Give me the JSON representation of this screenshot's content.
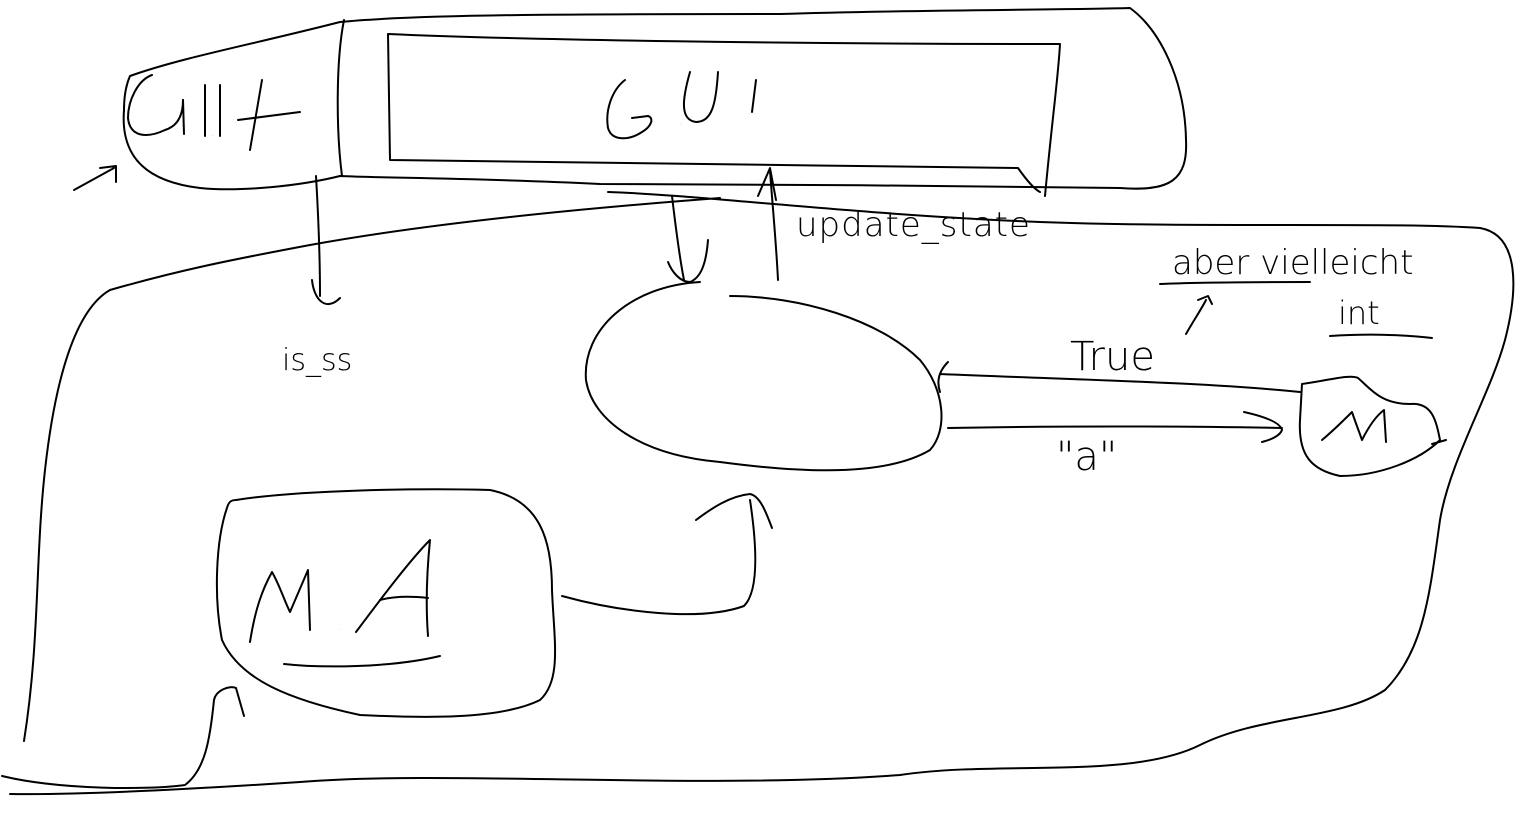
{
  "diagram": {
    "nodes": {
      "uih": {
        "label": "UIH"
      },
      "gui": {
        "label": "GUI"
      },
      "ma": {
        "label": "MA"
      },
      "m": {
        "label": "M"
      },
      "center": {
        "label": ""
      }
    },
    "edges": {
      "update_state": {
        "label": "update_state"
      },
      "is_ss": {
        "label": "is_ss"
      },
      "true": {
        "label": "True"
      },
      "a": {
        "label": "\"a\""
      }
    },
    "annotation": {
      "line1": "aber vielleicht",
      "line2": "int"
    },
    "stroke_color": "#000000",
    "background_color": "#ffffff"
  }
}
